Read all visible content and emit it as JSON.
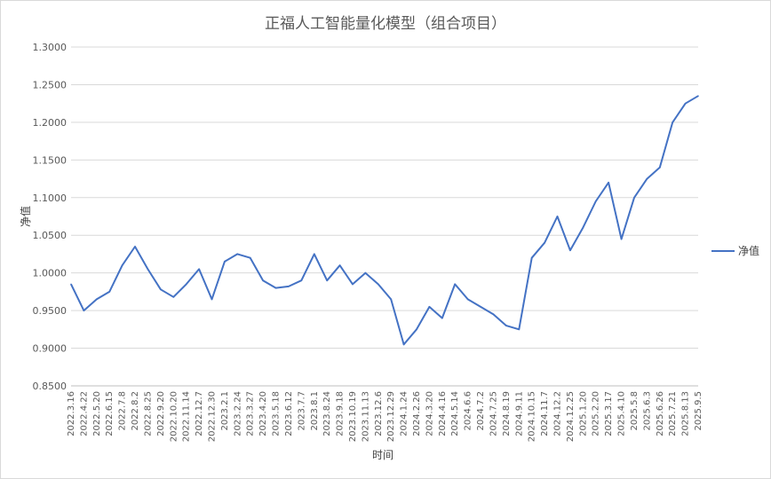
{
  "chart_data": {
    "type": "line",
    "title": "正福人工智能量化模型（组合项目）",
    "xlabel": "时间",
    "ylabel": "净值",
    "ylim": [
      0.85,
      1.3
    ],
    "yticks": [
      0.85,
      0.9,
      0.95,
      1.0,
      1.05,
      1.1,
      1.15,
      1.2,
      1.25,
      1.3
    ],
    "ytick_labels": [
      "0.8500",
      "0.9000",
      "0.9500",
      "1.0000",
      "1.0500",
      "1.1000",
      "1.1500",
      "1.2000",
      "1.2500",
      "1.3000"
    ],
    "grid": true,
    "legend_position": "right",
    "color": "#4472c4",
    "x_tick_labels": [
      "2022.3.16",
      "2022.4.22",
      "2022.5.20",
      "2022.6.15",
      "2022.7.8",
      "2022.8.2",
      "2022.8.25",
      "2022.9.20",
      "2022.10.20",
      "2022.11.14",
      "2022.12.7",
      "2022.12.30",
      "2023.2.1",
      "2023.2.24",
      "2023.3.27",
      "2023.4.20",
      "2023.5.18",
      "2023.6.12",
      "2023.7.7",
      "2023.8.1",
      "2023.8.24",
      "2023.9.18",
      "2023.10.19",
      "2023.11.13",
      "2023.12.6",
      "2023.12.29",
      "2024.1.24",
      "2024.2.26",
      "2024.3.20",
      "2024.4.16",
      "2024.5.14",
      "2024.6.6",
      "2024.7.2",
      "2024.7.25",
      "2024.8.19",
      "2024.9.11",
      "2024.10.15",
      "2024.11.7",
      "2024.12.2",
      "2024.12.25",
      "2025.1.20",
      "2025.2.20",
      "2025.3.17",
      "2025.4.10",
      "2025.5.8",
      "2025.6.3",
      "2025.6.26",
      "2025.7.21",
      "2025.8.13",
      "2025.9.5"
    ],
    "series": [
      {
        "name": "净值",
        "x": [
          "2022.3.16",
          "2022.4.22",
          "2022.5.20",
          "2022.6.15",
          "2022.7.8",
          "2022.8.2",
          "2022.8.25",
          "2022.9.20",
          "2022.10.20",
          "2022.11.14",
          "2022.12.7",
          "2022.12.30",
          "2023.2.1",
          "2023.2.24",
          "2023.3.27",
          "2023.4.20",
          "2023.5.18",
          "2023.6.12",
          "2023.7.7",
          "2023.8.1",
          "2023.8.24",
          "2023.9.18",
          "2023.10.19",
          "2023.11.13",
          "2023.12.6",
          "2023.12.29",
          "2024.1.24",
          "2024.2.26",
          "2024.3.20",
          "2024.4.16",
          "2024.5.14",
          "2024.6.6",
          "2024.7.2",
          "2024.7.25",
          "2024.8.19",
          "2024.9.11",
          "2024.10.15",
          "2024.11.7",
          "2024.12.2",
          "2024.12.25",
          "2025.1.20",
          "2025.2.20",
          "2025.3.17",
          "2025.4.10",
          "2025.5.8",
          "2025.6.3",
          "2025.6.26",
          "2025.7.21",
          "2025.8.13",
          "2025.9.5"
        ],
        "values": [
          0.985,
          0.95,
          0.965,
          0.975,
          1.01,
          1.035,
          1.005,
          0.978,
          0.968,
          0.985,
          1.005,
          0.965,
          1.015,
          1.025,
          1.02,
          0.99,
          0.98,
          0.982,
          0.99,
          1.025,
          0.99,
          1.01,
          0.985,
          1.0,
          0.985,
          0.965,
          0.905,
          0.925,
          0.955,
          0.94,
          0.985,
          0.965,
          0.955,
          0.945,
          0.93,
          0.925,
          1.02,
          1.04,
          1.075,
          1.03,
          1.06,
          1.095,
          1.12,
          1.045,
          1.1,
          1.125,
          1.14,
          1.2,
          1.225,
          1.235
        ]
      }
    ]
  }
}
